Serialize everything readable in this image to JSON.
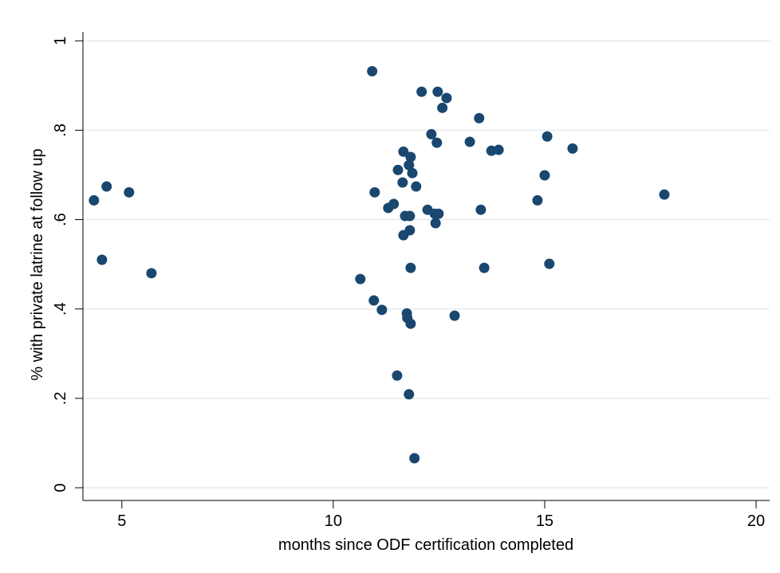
{
  "chart_data": {
    "type": "scatter",
    "xlabel": "months since ODF certification completed",
    "ylabel": "% with private latrine at follow up",
    "color": "#1a476f",
    "grid": true,
    "xlim": [
      4.08,
      20.32
    ],
    "ylim": [
      -0.0285,
      1.02
    ],
    "xticks": [
      5,
      10,
      15,
      20
    ],
    "yticks": [
      0,
      {
        "value": 0.2,
        "label": ".2"
      },
      {
        "value": 0.4,
        "label": ".4"
      },
      {
        "value": 0.6,
        "label": ".6"
      },
      {
        "value": 0.8,
        "label": ".8"
      },
      1
    ],
    "x": [
      4.34,
      4.64,
      5.17,
      4.53,
      5.7,
      10.92,
      12.09,
      12.47,
      12.68,
      12.58,
      13.45,
      12.32,
      12.45,
      13.23,
      13.74,
      13.91,
      15.06,
      15.66,
      11.66,
      11.83,
      11.79,
      11.53,
      11.87,
      11.64,
      11.96,
      10.98,
      15.0,
      14.83,
      17.83,
      11.43,
      11.3,
      12.23,
      12.49,
      12.4,
      12.42,
      11.7,
      11.81,
      13.49,
      11.81,
      11.66,
      11.83,
      13.57,
      15.11,
      10.64,
      10.96,
      11.15,
      11.74,
      11.75,
      11.83,
      12.87,
      11.51,
      11.79,
      11.92
    ],
    "y": [
      0.643,
      0.674,
      0.661,
      0.51,
      0.48,
      0.932,
      0.886,
      0.886,
      0.872,
      0.85,
      0.827,
      0.791,
      0.772,
      0.774,
      0.754,
      0.756,
      0.786,
      0.759,
      0.752,
      0.74,
      0.722,
      0.711,
      0.704,
      0.683,
      0.674,
      0.661,
      0.699,
      0.643,
      0.656,
      0.635,
      0.626,
      0.622,
      0.613,
      0.613,
      0.592,
      0.608,
      0.608,
      0.622,
      0.576,
      0.565,
      0.492,
      0.492,
      0.501,
      0.467,
      0.419,
      0.398,
      0.39,
      0.38,
      0.367,
      0.385,
      0.251,
      0.209,
      0.066
    ]
  }
}
